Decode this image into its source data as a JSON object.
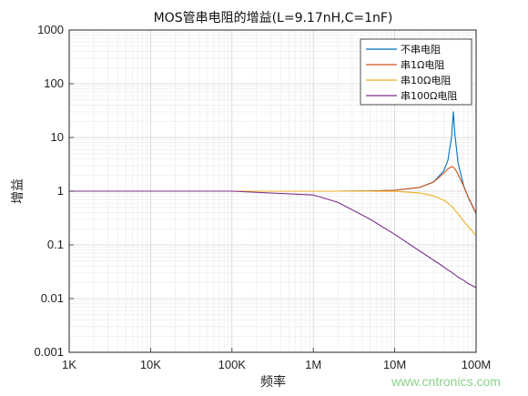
{
  "chart_data": {
    "type": "line",
    "title": "MOS管串电阻的增益(L=9.17nH,C=1nF)",
    "xlabel": "频率",
    "ylabel": "增益",
    "xscale": "log",
    "yscale": "log",
    "xlim": [
      1000,
      100000000
    ],
    "ylim": [
      0.001,
      1000
    ],
    "grid": true,
    "minor_grid": true,
    "legend_position": "top-right",
    "x_ticks": [
      {
        "value": 1000,
        "label": "1K"
      },
      {
        "value": 10000,
        "label": "10K"
      },
      {
        "value": 100000,
        "label": "100K"
      },
      {
        "value": 1000000,
        "label": "1M"
      },
      {
        "value": 10000000,
        "label": "10M"
      },
      {
        "value": 100000000,
        "label": "100M"
      }
    ],
    "y_ticks": [
      {
        "value": 0.001,
        "label": "0.001"
      },
      {
        "value": 0.01,
        "label": "0.01"
      },
      {
        "value": 0.1,
        "label": "0.1"
      },
      {
        "value": 1,
        "label": "1"
      },
      {
        "value": 10,
        "label": "10"
      },
      {
        "value": 100,
        "label": "100"
      },
      {
        "value": 1000,
        "label": "1000"
      }
    ],
    "x": [
      1000,
      100000,
      1000000,
      2000000,
      5000000,
      10000000,
      20000000,
      30000000,
      40000000,
      45000000,
      50000000,
      52560000,
      55000000,
      60000000,
      70000000,
      80000000,
      100000000
    ],
    "series": [
      {
        "name": "不串电阻",
        "color": "#0072bd",
        "values": [
          1.0,
          1.0,
          1.0,
          1.0,
          1.01,
          1.04,
          1.17,
          1.48,
          2.38,
          3.74,
          10.3,
          30.0,
          11.0,
          3.37,
          1.29,
          0.76,
          0.38
        ]
      },
      {
        "name": "串1Ω电阻",
        "color": "#d95319",
        "values": [
          1.0,
          1.0,
          1.0,
          1.0,
          1.01,
          1.04,
          1.17,
          1.47,
          2.15,
          2.6,
          2.85,
          2.8,
          2.6,
          2.05,
          1.25,
          0.78,
          0.39
        ]
      },
      {
        "name": "串10Ω电阻",
        "color": "#edb120",
        "values": [
          1.0,
          1.0,
          1.0,
          1.0,
          1.0,
          0.99,
          0.93,
          0.82,
          0.68,
          0.6,
          0.52,
          0.48,
          0.44,
          0.38,
          0.28,
          0.22,
          0.15
        ]
      },
      {
        "name": "串100Ω电阻",
        "color": "#7e2f8e",
        "values": [
          1.0,
          1.0,
          0.85,
          0.62,
          0.3,
          0.157,
          0.078,
          0.052,
          0.039,
          0.034,
          0.031,
          0.029,
          0.028,
          0.025,
          0.022,
          0.019,
          0.016
        ]
      }
    ]
  },
  "watermark": "www.cntronics.com"
}
